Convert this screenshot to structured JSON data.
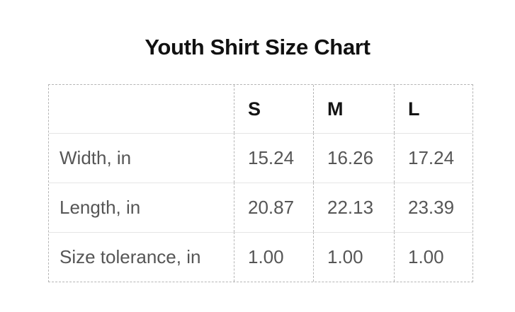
{
  "title": "Youth Shirt Size Chart",
  "table": {
    "columns": [
      "S",
      "M",
      "L"
    ],
    "rows": [
      {
        "label": "Width, in",
        "values": [
          "15.24",
          "16.26",
          "17.24"
        ]
      },
      {
        "label": "Length, in",
        "values": [
          "20.87",
          "22.13",
          "23.39"
        ]
      },
      {
        "label": "Size tolerance, in",
        "values": [
          "1.00",
          "1.00",
          "1.00"
        ]
      }
    ]
  },
  "colors": {
    "title_text": "#111111",
    "header_text": "#141414",
    "body_text": "#565656",
    "dashed_border": "#b5b5b5",
    "row_separator": "#e5e5e5",
    "background": "#ffffff"
  },
  "chart_data": {
    "type": "table",
    "title": "Youth Shirt Size Chart",
    "columns": [
      "",
      "S",
      "M",
      "L"
    ],
    "rows": [
      [
        "Width, in",
        15.24,
        16.26,
        17.24
      ],
      [
        "Length, in",
        20.87,
        22.13,
        23.39
      ],
      [
        "Size tolerance, in",
        1.0,
        1.0,
        1.0
      ]
    ]
  }
}
